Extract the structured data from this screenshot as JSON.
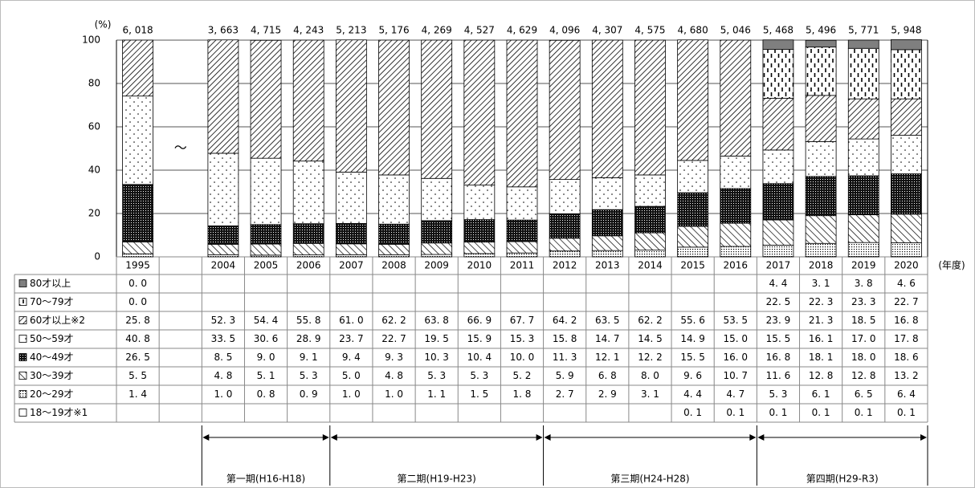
{
  "chart_data": {
    "type": "bar",
    "stacked": true,
    "y_unit": "(%)",
    "x_unit": "(年度)",
    "gap_mark": "～",
    "categories": [
      "1995",
      null,
      "2004",
      "2005",
      "2006",
      "2007",
      "2008",
      "2009",
      "2010",
      "2011",
      "2012",
      "2013",
      "2014",
      "2015",
      "2016",
      "2017",
      "2018",
      "2019",
      "2020"
    ],
    "totals": {
      "values": [
        6018,
        null,
        3663,
        4715,
        4243,
        5213,
        5176,
        4269,
        4527,
        4629,
        4096,
        4307,
        4575,
        4680,
        5046,
        5468,
        5496,
        5771,
        5948
      ],
      "value_labels": [
        "6, 018",
        null,
        "3, 663",
        "4, 715",
        "4, 243",
        "5, 213",
        "5, 176",
        "4, 269",
        "4, 527",
        "4, 629",
        "4, 096",
        "4, 307",
        "4, 575",
        "4, 680",
        "5, 046",
        "5, 468",
        "5, 496",
        "5, 771",
        "5, 948"
      ]
    },
    "series": [
      {
        "name": "80才以上",
        "color": "#7f7f7f",
        "pattern": "solid",
        "values": [
          0.0,
          null,
          null,
          null,
          null,
          null,
          null,
          null,
          null,
          null,
          null,
          null,
          null,
          null,
          null,
          4.4,
          3.1,
          3.8,
          4.6
        ],
        "value_labels": [
          "0. 0",
          null,
          null,
          null,
          null,
          null,
          null,
          null,
          null,
          null,
          null,
          null,
          null,
          null,
          null,
          "4. 4",
          "3. 1",
          "3. 8",
          "4. 6"
        ]
      },
      {
        "name": "70～79才",
        "color": "#000000",
        "pattern": "dashes",
        "values": [
          0.0,
          null,
          null,
          null,
          null,
          null,
          null,
          null,
          null,
          null,
          null,
          null,
          null,
          null,
          null,
          22.5,
          22.3,
          23.3,
          22.7
        ],
        "value_labels": [
          "0. 0",
          null,
          null,
          null,
          null,
          null,
          null,
          null,
          null,
          null,
          null,
          null,
          null,
          null,
          null,
          "22. 5",
          "22. 3",
          "23. 3",
          "22. 7"
        ]
      },
      {
        "name": "60才以上※2",
        "color": "#000000",
        "pattern": "hatch",
        "values": [
          25.8,
          null,
          52.3,
          54.4,
          55.8,
          61.0,
          62.2,
          63.8,
          66.9,
          67.7,
          64.2,
          63.5,
          62.2,
          55.6,
          53.5,
          23.9,
          21.3,
          18.5,
          16.8
        ],
        "value_labels": [
          "25. 8",
          null,
          "52. 3",
          "54. 4",
          "55. 8",
          "61. 0",
          "62. 2",
          "63. 8",
          "66. 9",
          "67. 7",
          "64. 2",
          "63. 5",
          "62. 2",
          "55. 6",
          "53. 5",
          "23. 9",
          "21. 3",
          "18. 5",
          "16. 8"
        ]
      },
      {
        "name": "50～59才",
        "color": "#000000",
        "pattern": "sparse-dots",
        "values": [
          40.8,
          null,
          33.5,
          30.6,
          28.9,
          23.7,
          22.7,
          19.5,
          15.9,
          15.3,
          15.8,
          14.7,
          14.5,
          14.9,
          15.0,
          15.5,
          16.1,
          17.0,
          17.8
        ],
        "value_labels": [
          "40. 8",
          null,
          "33. 5",
          "30. 6",
          "28. 9",
          "23. 7",
          "22. 7",
          "19. 5",
          "15. 9",
          "15. 3",
          "15. 8",
          "14. 7",
          "14. 5",
          "14. 9",
          "15. 0",
          "15. 5",
          "16. 1",
          "17. 0",
          "17. 8"
        ]
      },
      {
        "name": "40～49才",
        "color": "#000000",
        "pattern": "dark-dots",
        "values": [
          26.5,
          null,
          8.5,
          9.0,
          9.1,
          9.4,
          9.3,
          10.3,
          10.4,
          10.0,
          11.3,
          12.1,
          12.2,
          15.5,
          16.0,
          16.8,
          18.1,
          18.0,
          18.6
        ],
        "value_labels": [
          "26. 5",
          null,
          "8. 5",
          "9. 0",
          "9. 1",
          "9. 4",
          "9. 3",
          "10. 3",
          "10. 4",
          "10. 0",
          "11. 3",
          "12. 1",
          "12. 2",
          "15. 5",
          "16. 0",
          "16. 8",
          "18. 1",
          "18. 0",
          "18. 6"
        ]
      },
      {
        "name": "30～39才",
        "color": "#000000",
        "pattern": "back-hatch",
        "values": [
          5.5,
          null,
          4.8,
          5.1,
          5.3,
          5.0,
          4.8,
          5.3,
          5.3,
          5.2,
          5.9,
          6.8,
          8.0,
          9.6,
          10.7,
          11.6,
          12.8,
          12.8,
          13.2
        ],
        "value_labels": [
          "5. 5",
          null,
          "4. 8",
          "5. 1",
          "5. 3",
          "5. 0",
          "4. 8",
          "5. 3",
          "5. 3",
          "5. 2",
          "5. 9",
          "6. 8",
          "8. 0",
          "9. 6",
          "10. 7",
          "11. 6",
          "12. 8",
          "12. 8",
          "13. 2"
        ]
      },
      {
        "name": "20～29才",
        "color": "#000000",
        "pattern": "fine-dots",
        "values": [
          1.4,
          null,
          1.0,
          0.8,
          0.9,
          1.0,
          1.0,
          1.1,
          1.5,
          1.8,
          2.7,
          2.9,
          3.1,
          4.4,
          4.7,
          5.3,
          6.1,
          6.5,
          6.4
        ],
        "value_labels": [
          "1. 4",
          null,
          "1. 0",
          "0. 8",
          "0. 9",
          "1. 0",
          "1. 0",
          "1. 1",
          "1. 5",
          "1. 8",
          "2. 7",
          "2. 9",
          "3. 1",
          "4. 4",
          "4. 7",
          "5. 3",
          "6. 1",
          "6. 5",
          "6. 4"
        ]
      },
      {
        "name": "18～19才※1",
        "color": "#ffffff",
        "pattern": "solid",
        "values": [
          null,
          null,
          null,
          null,
          null,
          null,
          null,
          null,
          null,
          null,
          null,
          null,
          null,
          0.1,
          0.1,
          0.1,
          0.1,
          0.1,
          0.1
        ],
        "value_labels": [
          null,
          null,
          null,
          null,
          null,
          null,
          null,
          null,
          null,
          null,
          null,
          null,
          null,
          "0. 1",
          "0. 1",
          "0. 1",
          "0. 1",
          "0. 1",
          "0. 1"
        ]
      }
    ],
    "ylim": [
      0,
      100
    ],
    "yticks": [
      0,
      20,
      40,
      60,
      80,
      100
    ],
    "grid": true,
    "periods": [
      "第一期(H16-H18)",
      "第二期(H19-H23)",
      "第三期(H24-H28)",
      "第四期(H29-R3)"
    ]
  }
}
